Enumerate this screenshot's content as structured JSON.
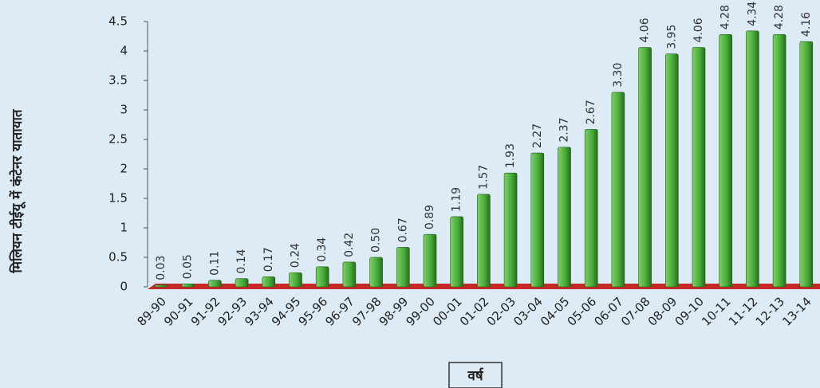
{
  "chart_data": {
    "type": "bar",
    "y_label": "मिलियन टीईयू में कंटेनर यातायात",
    "x_label": "वर्ष",
    "categories": [
      "89-90",
      "90-91",
      "91-92",
      "92-93",
      "93-94",
      "94-95",
      "95-96",
      "96-97",
      "97-98",
      "98-99",
      "99-00",
      "00-01",
      "01-02",
      "02-03",
      "03-04",
      "04-05",
      "05-06",
      "06-07",
      "07-08",
      "08-09",
      "09-10",
      "10-11",
      "11-12",
      "12-13",
      "13-14"
    ],
    "values": [
      0.03,
      0.05,
      0.11,
      0.14,
      0.17,
      0.24,
      0.34,
      0.42,
      0.5,
      0.67,
      0.89,
      1.19,
      1.57,
      1.93,
      2.27,
      2.37,
      2.67,
      3.3,
      4.06,
      3.95,
      4.06,
      4.28,
      4.34,
      4.28,
      4.16
    ],
    "value_labels": [
      "0.03",
      "0.05",
      "0.11",
      "0.14",
      "0.17",
      "0.24",
      "0.34",
      "0.42",
      "0.50",
      "0.67",
      "0.89",
      "1.19",
      "1.57",
      "1.93",
      "2.27",
      "2.37",
      "2.67",
      "3.30",
      "4.06",
      "3.95",
      "4.06",
      "4.28",
      "4.34",
      "4.28",
      "4.16"
    ],
    "color": "#4fb33f",
    "ylim": [
      0,
      4.5
    ],
    "yticks": [
      0,
      0.5,
      1,
      1.5,
      2,
      2.5,
      3,
      3.5,
      4,
      4.5
    ]
  }
}
